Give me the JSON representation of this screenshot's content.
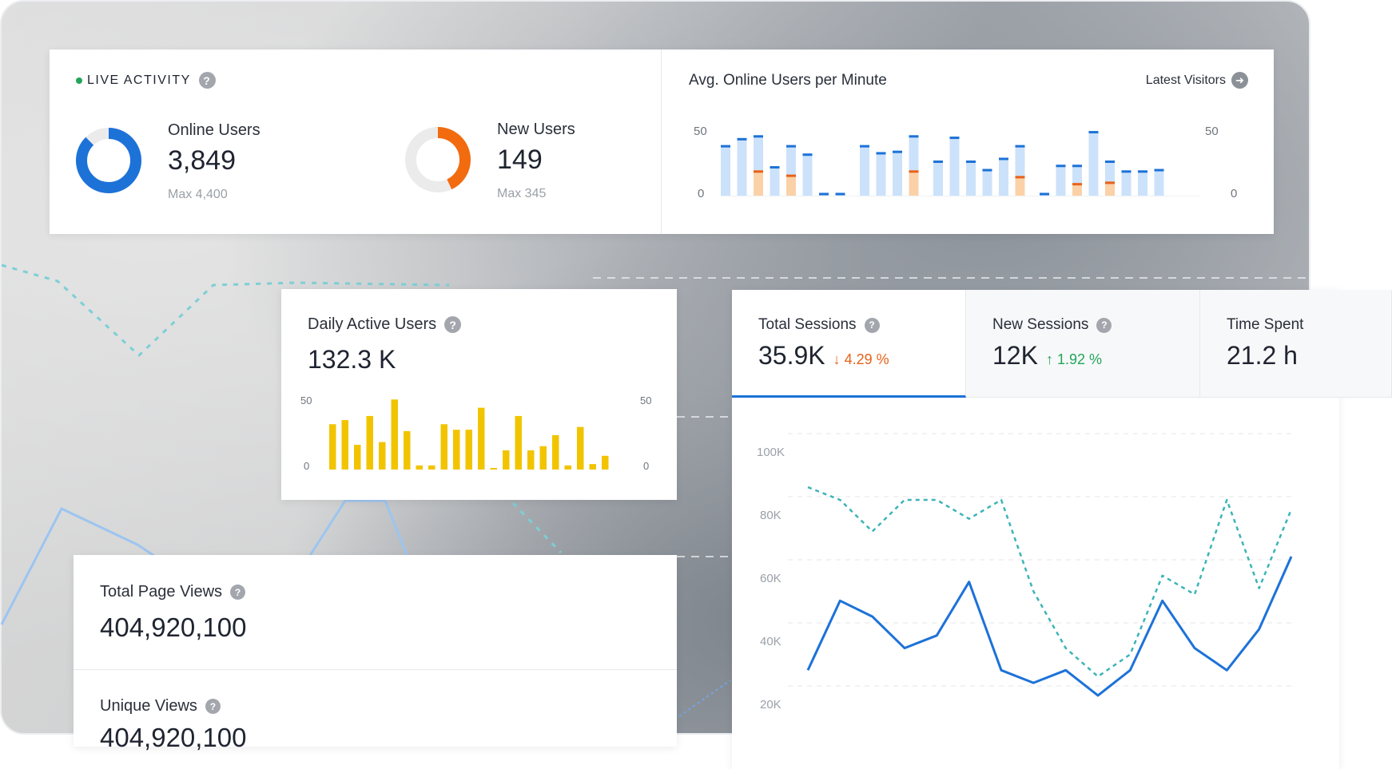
{
  "live_activity": {
    "title": "LIVE ACTIVITY",
    "online_users": {
      "label": "Online Users",
      "value": "3,849",
      "max": "Max 4,400",
      "fraction": 0.875,
      "color": "#1d72d8"
    },
    "new_users": {
      "label": "New Users",
      "value": "149",
      "max": "Max 345",
      "fraction": 0.43,
      "color": "#f26b0f"
    }
  },
  "avg_online_chart": {
    "title": "Avg. Online Users per Minute",
    "link_label": "Latest Visitors",
    "ticks": [
      "50",
      "0"
    ],
    "chart_data": {
      "type": "bar",
      "stacked": true,
      "ylim": [
        0,
        50
      ],
      "colors": {
        "total": "#cce2fb",
        "top": "#1d72d8",
        "highlight": "#fbd1a8",
        "highlight_top": "#e8611a"
      },
      "values": [
        36,
        41,
        43,
        21,
        36,
        30,
        2,
        2,
        36,
        31,
        32,
        43,
        25,
        42,
        25,
        19,
        27,
        36,
        2,
        22,
        22,
        46,
        25,
        18,
        18,
        19
      ],
      "highlight": [
        0,
        0,
        18,
        0,
        15,
        0,
        0,
        0,
        0,
        0,
        0,
        18,
        0,
        0,
        0,
        0,
        0,
        14,
        0,
        0,
        9,
        0,
        10,
        0,
        0,
        0
      ],
      "gaps_after": [
        7,
        11,
        17
      ]
    }
  },
  "daily_active": {
    "title": "Daily Active Users",
    "value": "132.3 K",
    "ticks": [
      "50",
      "0"
    ],
    "chart_data": {
      "type": "bar",
      "ylim": [
        0,
        50
      ],
      "color": "#f2c400",
      "values": [
        33,
        36,
        18,
        39,
        20,
        51,
        28,
        3,
        3,
        33,
        29,
        29,
        45,
        1,
        14,
        39,
        14,
        17,
        25,
        3,
        31,
        4,
        10
      ]
    }
  },
  "page_views": {
    "title": "Total Page Views",
    "value": "404,920,100",
    "unique_title": "Unique Views",
    "unique_value": "404,920,100"
  },
  "sessions": {
    "tabs": [
      {
        "label": "Total Sessions",
        "value": "35.9K",
        "change": "4.29 %",
        "direction": "down",
        "arrow": "↓"
      },
      {
        "label": "New Sessions",
        "value": "12K",
        "change": "1.92 %",
        "direction": "up",
        "arrow": "↑"
      },
      {
        "label": "Time Spent",
        "value": "21.2 h"
      }
    ],
    "chart_data": {
      "type": "line",
      "y_ticks": [
        "100K",
        "80K",
        "60K",
        "40K",
        "20K"
      ],
      "ylim": [
        20000,
        100000
      ],
      "series": [
        {
          "color": "#3bb4b8",
          "dashed": true,
          "values": [
            83000,
            79000,
            69000,
            79000,
            79000,
            73000,
            79000,
            50000,
            32000,
            23000,
            30000,
            55000,
            49000,
            79000,
            51000,
            76000
          ]
        },
        {
          "color": "#1d72d8",
          "dashed": false,
          "values": [
            25000,
            47000,
            42000,
            32000,
            36000,
            53000,
            25000,
            21000,
            25000,
            17000,
            25000,
            47000,
            32000,
            25000,
            38000,
            61000
          ]
        }
      ]
    }
  }
}
